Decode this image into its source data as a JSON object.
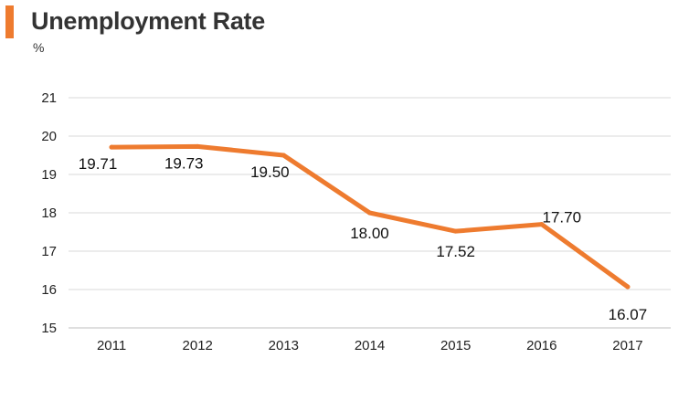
{
  "colors": {
    "accent": "#ee7b2f",
    "grid": "#d9d9d9"
  },
  "header": {
    "title": "Unemployment Rate",
    "unit": "%"
  },
  "chart_data": {
    "type": "line",
    "title": "Unemployment Rate",
    "ylabel": "%",
    "xlabel": "",
    "categories": [
      "2011",
      "2012",
      "2013",
      "2014",
      "2015",
      "2016",
      "2017"
    ],
    "series": [
      {
        "values": [
          19.71,
          19.73,
          19.5,
          18.0,
          17.52,
          17.7,
          16.07
        ],
        "labels": [
          "19.71",
          "19.73",
          "19.50",
          "18.00",
          "17.52",
          "17.70",
          "16.07"
        ]
      }
    ],
    "ylim": [
      15,
      21
    ],
    "yticks": [
      "15",
      "16",
      "17",
      "18",
      "19",
      "20",
      "21"
    ],
    "grid": true,
    "legend": "none"
  }
}
